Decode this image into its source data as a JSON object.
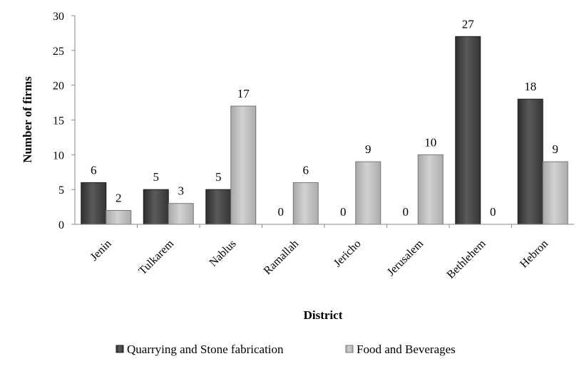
{
  "chart_data": {
    "type": "bar",
    "title": "",
    "xlabel": "District",
    "ylabel": "Number of firms",
    "ylim": [
      0,
      30
    ],
    "yticks": [
      0,
      5,
      10,
      15,
      20,
      25,
      30
    ],
    "grid": false,
    "legend_position": "bottom",
    "categories": [
      "Jenin",
      "Tulkarem",
      "Nablus",
      "Ramallah",
      "Jericho",
      "Jerusalem",
      "Bethlehem",
      "Hebron"
    ],
    "series": [
      {
        "name": "Quarrying and Stone fabrication",
        "color": "#4a4a4a",
        "values": [
          6,
          5,
          5,
          0,
          0,
          0,
          27,
          18
        ]
      },
      {
        "name": "Food and Beverages",
        "color": "#bdbdbd",
        "values": [
          2,
          3,
          17,
          6,
          9,
          10,
          0,
          9
        ]
      }
    ]
  }
}
